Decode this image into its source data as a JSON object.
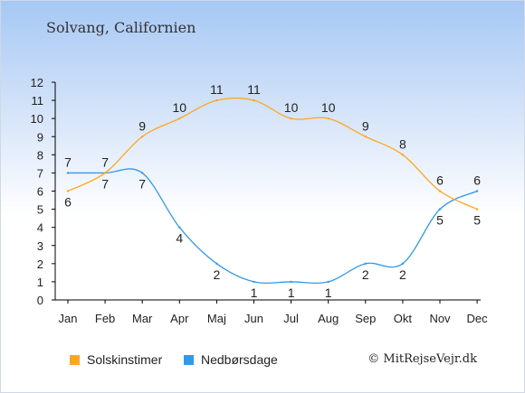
{
  "title": "Solvang, Californien",
  "colors": {
    "sun": "#ffa620",
    "rain": "#3399e6",
    "axis": "#000000",
    "grid": "#cccccc"
  },
  "legend": {
    "sun_label": "Solskinstimer",
    "rain_label": "Nedbørsdage"
  },
  "copyright": "© MitRejseVejr.dk",
  "chart_data": {
    "type": "line",
    "categories": [
      "Jan",
      "Feb",
      "Mar",
      "Apr",
      "Maj",
      "Jun",
      "Jul",
      "Aug",
      "Sep",
      "Okt",
      "Nov",
      "Dec"
    ],
    "ylim": [
      0,
      12
    ],
    "yticks": [
      0,
      1,
      2,
      3,
      4,
      5,
      6,
      7,
      8,
      9,
      10,
      11,
      12
    ],
    "series": [
      {
        "name": "Solskinstimer",
        "color": "#ffa620",
        "values": [
          6,
          7,
          9,
          10,
          11,
          11,
          10,
          10,
          9,
          8,
          6,
          5
        ],
        "labels": [
          "6",
          "7",
          "9",
          "10",
          "11",
          "11",
          "10",
          "10",
          "9",
          "8",
          "6",
          "5"
        ]
      },
      {
        "name": "Nedbørsdage",
        "color": "#3399e6",
        "values": [
          7,
          7,
          7,
          4,
          2,
          1,
          1,
          1,
          2,
          2,
          5,
          6
        ],
        "labels": [
          "7",
          "7",
          "7",
          "4",
          "2",
          "1",
          "1",
          "1",
          "2",
          "2",
          "5",
          "6"
        ]
      }
    ],
    "legend_position": "bottom-left",
    "grid": false
  }
}
